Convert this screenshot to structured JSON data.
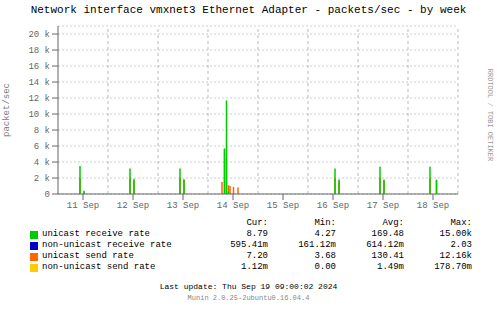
{
  "chart_data": {
    "type": "stem",
    "title": "Network interface vmxnet3 Ethernet Adapter - packets/sec - by week",
    "y_label": "packet/sec",
    "xlim": [
      0,
      8
    ],
    "xticks": [
      {
        "value": 0.5,
        "label": "11 Sep"
      },
      {
        "value": 1.5,
        "label": "12 Sep"
      },
      {
        "value": 2.5,
        "label": "13 Sep"
      },
      {
        "value": 3.5,
        "label": "14 Sep"
      },
      {
        "value": 4.5,
        "label": "15 Sep"
      },
      {
        "value": 5.5,
        "label": "16 Sep"
      },
      {
        "value": 6.5,
        "label": "17 Sep"
      },
      {
        "value": 7.5,
        "label": "18 Sep"
      }
    ],
    "ylim": [
      0,
      21000
    ],
    "yticks": [
      0,
      {
        "value": 2000,
        "label": "2 k"
      },
      {
        "value": 4000,
        "label": "4 k"
      },
      {
        "value": 6000,
        "label": "6 k"
      },
      {
        "value": 8000,
        "label": "8 k"
      },
      {
        "value": 10000,
        "label": "10 k"
      },
      {
        "value": 12000,
        "label": "12 k"
      },
      {
        "value": 14000,
        "label": "14 k"
      },
      {
        "value": 16000,
        "label": "16 k"
      },
      {
        "value": 18000,
        "label": "18 k"
      },
      {
        "value": 20000,
        "label": "20 k"
      }
    ],
    "grid": true,
    "day_lines": [
      1.0,
      2.0,
      3.0,
      4.0,
      5.0,
      6.0,
      7.0,
      8.0
    ],
    "series": [
      {
        "name": "unicast receive rate",
        "color": "#00CC00",
        "x": [
          0.44,
          0.52,
          1.44,
          1.52,
          2.44,
          2.52,
          3.33,
          3.37,
          3.41,
          5.54,
          5.62,
          6.44,
          6.52,
          7.44,
          7.57
        ],
        "values": [
          3500,
          400,
          3200,
          1900,
          3200,
          1800,
          5700,
          11700,
          300,
          3200,
          1800,
          3400,
          1800,
          3400,
          1800
        ],
        "stats": [
          "8.79",
          "4.27",
          "169.48",
          "15.00k"
        ]
      },
      {
        "name": "non-unicast receive rate",
        "color": "#0000CC",
        "x": [],
        "values": [],
        "stats": [
          "595.41m",
          "161.12m",
          "614.12m",
          "2.03"
        ]
      },
      {
        "name": "unicast send rate",
        "color": "#FF6600",
        "x": [
          0.44,
          0.52,
          1.44,
          1.52,
          2.44,
          2.52,
          3.28,
          3.33,
          3.37,
          3.41,
          3.44,
          3.51,
          3.6,
          5.54,
          5.62,
          6.44,
          6.52,
          7.44,
          7.57
        ],
        "values": [
          2000,
          200,
          2000,
          1700,
          2000,
          1800,
          1500,
          5600,
          4400,
          1100,
          1000,
          900,
          800,
          2000,
          1700,
          2000,
          1700,
          2000,
          1700
        ],
        "stats": [
          "7.20",
          "3.68",
          "130.41",
          "12.16k"
        ]
      },
      {
        "name": "non-unicast send rate",
        "color": "#FFCC00",
        "x": [
          3.37
        ],
        "values": [
          280
        ],
        "stats": [
          "1.12m",
          "0.00",
          "1.49m",
          "178.70m"
        ]
      }
    ],
    "stat_headers": [
      "Cur:",
      "Min:",
      "Avg:",
      "Max:"
    ],
    "footer": "Last update:  Thu Sep 19 09:00:02 2024",
    "credit": "Munin 2.0.25-2ubuntu0.16.04.4",
    "watermark": "RRDTOOL / TOBI OETIKER"
  }
}
